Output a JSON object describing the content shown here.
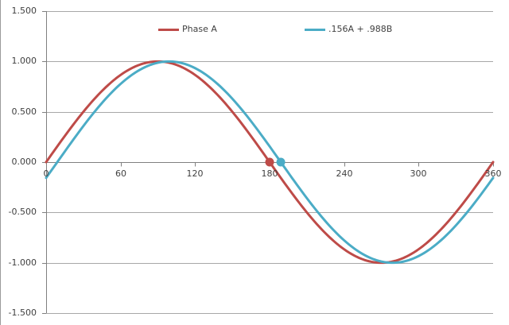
{
  "window": {
    "background_color": "#FFFFFF",
    "frame_edge_color": "#9B9B9B"
  },
  "chart_data": {
    "type": "line",
    "title": "",
    "xlabel": "",
    "ylabel": "",
    "x_range": [
      0,
      360
    ],
    "y_range": [
      -1.5,
      1.5
    ],
    "x_tick_values": [
      0,
      60,
      120,
      180,
      240,
      300,
      360
    ],
    "x_tick_labels": [
      "0",
      "60",
      "120",
      "180",
      "240",
      "300",
      "360"
    ],
    "y_tick_values": [
      1.5,
      1.0,
      0.5,
      0,
      -0.5,
      -1.0,
      -1.5
    ],
    "y_tick_labels": [
      "1.500",
      "1.000",
      "0.500",
      "0.000",
      "-0.500",
      "-1.000",
      "-1.500"
    ],
    "grid": true,
    "legend_position": "top-inside-horizontal",
    "colors": {
      "gridline": "#A8A8A8",
      "axis": "#808080",
      "tick_text": "#3F3F3F"
    },
    "series": [
      {
        "name": "Phase A",
        "color": "#BE4B48",
        "curve": "sine",
        "amplitude": 1.0,
        "phase_shift_deg": 0,
        "line_width": 3,
        "x_samples_deg": [
          0,
          30,
          60,
          90,
          120,
          150,
          180,
          210,
          240,
          270,
          300,
          330,
          360
        ],
        "y_samples": [
          0,
          0.5,
          0.866,
          1.0,
          0.866,
          0.5,
          0,
          -0.5,
          -0.866,
          -1.0,
          -0.866,
          -0.5,
          0
        ],
        "markers": [
          {
            "x": 180,
            "y": 0
          }
        ]
      },
      {
        "name": ".156A + .988B",
        "color": "#4BACC6",
        "curve": "sine",
        "amplitude": 1.0,
        "phase_shift_deg": 9,
        "line_width": 3,
        "x_samples_deg": [
          0,
          30,
          60,
          90,
          120,
          150,
          180,
          210,
          240,
          270,
          300,
          330,
          360
        ],
        "y_samples": [
          -0.156,
          0.358,
          0.777,
          0.988,
          0.934,
          0.629,
          0.156,
          -0.358,
          -0.777,
          -0.988,
          -0.934,
          -0.629,
          -0.156
        ],
        "markers": [
          {
            "x": 189,
            "y": 0
          }
        ]
      }
    ]
  }
}
